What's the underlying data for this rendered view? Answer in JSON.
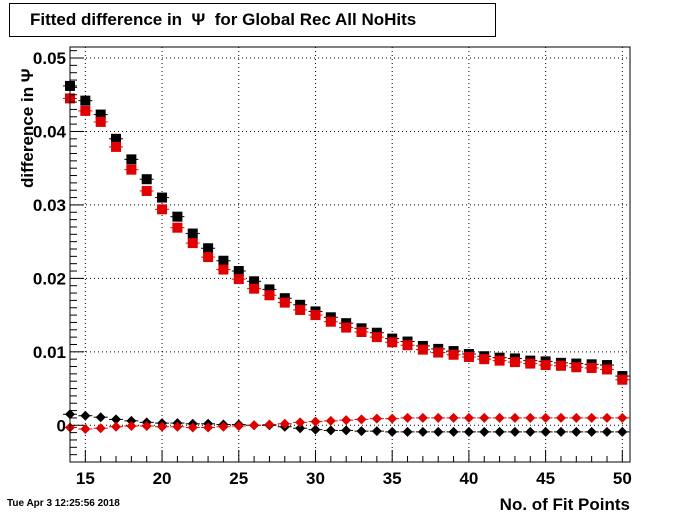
{
  "title": "Fitted difference in  Ψ  for Global Rec All NoHits",
  "timestamp": "Tue Apr  3 12:25:56 2018",
  "chart_data": {
    "type": "scatter",
    "title": "Fitted difference in  Ψ  for Global Rec All NoHits",
    "xlabel": "No. of Fit Points",
    "ylabel": "difference in  Ψ",
    "xlim": [
      14,
      50.5
    ],
    "ylim": [
      -0.005,
      0.0515
    ],
    "grid": true,
    "xticks": [
      15,
      20,
      25,
      30,
      35,
      40,
      45,
      50
    ],
    "yticks": [
      0,
      0.01,
      0.02,
      0.03,
      0.04,
      0.05
    ],
    "yticklabels": [
      "0",
      "0.01",
      "0.02",
      "0.03",
      "0.04",
      "0.05"
    ],
    "x": [
      14,
      15,
      16,
      17,
      18,
      19,
      20,
      21,
      22,
      23,
      24,
      25,
      26,
      27,
      28,
      29,
      30,
      31,
      32,
      33,
      34,
      35,
      36,
      37,
      38,
      39,
      40,
      41,
      42,
      43,
      44,
      45,
      46,
      47,
      48,
      49,
      50
    ],
    "series": [
      {
        "color": "#000000",
        "marker": "square",
        "values": [
          0.0462,
          0.0442,
          0.0423,
          0.039,
          0.0362,
          0.0335,
          0.031,
          0.0284,
          0.0261,
          0.0241,
          0.0224,
          0.021,
          0.0196,
          0.0185,
          0.0173,
          0.0164,
          0.0155,
          0.0147,
          0.0139,
          0.0132,
          0.0126,
          0.0118,
          0.0114,
          0.0108,
          0.0104,
          0.0101,
          0.0097,
          0.0094,
          0.0092,
          0.0091,
          0.0088,
          0.0087,
          0.0085,
          0.0084,
          0.0083,
          0.0082,
          0.0067
        ]
      },
      {
        "color": "#e00000",
        "marker": "square",
        "values": [
          0.0445,
          0.0428,
          0.0413,
          0.0379,
          0.0348,
          0.0319,
          0.0294,
          0.0269,
          0.0248,
          0.0229,
          0.0212,
          0.0199,
          0.0186,
          0.0177,
          0.0167,
          0.0157,
          0.015,
          0.0141,
          0.0133,
          0.0127,
          0.012,
          0.0113,
          0.0109,
          0.0103,
          0.0099,
          0.0096,
          0.0093,
          0.009,
          0.0088,
          0.0086,
          0.0084,
          0.0082,
          0.0081,
          0.0079,
          0.0078,
          0.0076,
          0.0062
        ]
      },
      {
        "color": "#000000",
        "marker": "diamond",
        "values": [
          0.0015,
          0.0013,
          0.0011,
          0.0008,
          0.0006,
          0.0004,
          0.0003,
          0.0003,
          0.0002,
          0.0002,
          0.0001,
          0.0001,
          0.0,
          0.0,
          -0.0002,
          -0.0004,
          -0.0006,
          -0.0007,
          -0.0007,
          -0.0008,
          -0.0008,
          -0.0009,
          -0.0009,
          -0.0009,
          -0.0009,
          -0.0009,
          -0.0009,
          -0.0009,
          -0.0009,
          -0.0009,
          -0.0009,
          -0.0009,
          -0.0009,
          -0.0009,
          -0.0009,
          -0.0009,
          -0.0009
        ]
      },
      {
        "color": "#e00000",
        "marker": "diamond",
        "values": [
          -0.0003,
          -0.0005,
          -0.0004,
          -0.0002,
          -0.0001,
          -0.0001,
          -0.0002,
          -0.0002,
          -0.0003,
          -0.0003,
          -0.0002,
          -0.0001,
          0.0,
          0.0001,
          0.0002,
          0.0004,
          0.0005,
          0.0006,
          0.0007,
          0.0008,
          0.0009,
          0.0009,
          0.001,
          0.001,
          0.001,
          0.001,
          0.001,
          0.001,
          0.001,
          0.001,
          0.001,
          0.001,
          0.001,
          0.001,
          0.001,
          0.001,
          0.001
        ]
      }
    ]
  }
}
